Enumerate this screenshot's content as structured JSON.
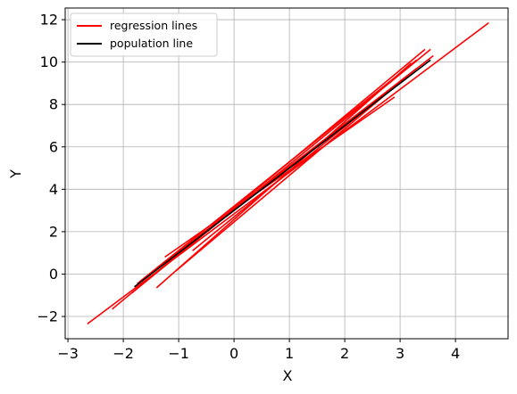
{
  "chart_data": {
    "type": "line",
    "title": "",
    "xlabel": "X",
    "ylabel": "Y",
    "xlim": [
      -3.05,
      4.95
    ],
    "ylim": [
      -3.05,
      12.55
    ],
    "xticks": [
      -3,
      -2,
      -1,
      0,
      1,
      2,
      3,
      4
    ],
    "yticks": [
      -2,
      0,
      2,
      4,
      6,
      8,
      10,
      12
    ],
    "xtick_labels": [
      "−3",
      "−2",
      "−1",
      "0",
      "1",
      "2",
      "3",
      "4"
    ],
    "ytick_labels": [
      "−2",
      "0",
      "2",
      "4",
      "6",
      "8",
      "10",
      "12"
    ],
    "grid": true,
    "legend": {
      "placement": "top-left",
      "entries": [
        {
          "label": "regression lines",
          "color": "#ff0000"
        },
        {
          "label": "population line",
          "color": "#000000"
        }
      ]
    },
    "series": [
      {
        "name": "regression lines",
        "color": "#ff0000",
        "segments": [
          {
            "x": [
              -2.65,
              4.6
            ],
            "y": [
              -2.35,
              11.85
            ]
          },
          {
            "x": [
              -2.2,
              3.45
            ],
            "y": [
              -1.65,
              10.6
            ]
          },
          {
            "x": [
              -1.85,
              3.55
            ],
            "y": [
              -0.9,
              10.6
            ]
          },
          {
            "x": [
              -1.75,
              3.6
            ],
            "y": [
              -0.45,
              10.3
            ]
          },
          {
            "x": [
              -1.7,
              3.3
            ],
            "y": [
              -0.35,
              10.1
            ]
          },
          {
            "x": [
              -1.4,
              3.2
            ],
            "y": [
              -0.65,
              9.95
            ]
          },
          {
            "x": [
              -1.25,
              2.9
            ],
            "y": [
              0.8,
              8.35
            ]
          },
          {
            "x": [
              -1.2,
              3.3
            ],
            "y": [
              0.6,
              9.7
            ]
          },
          {
            "x": [
              -1.05,
              3.25
            ],
            "y": [
              0.15,
              9.6
            ]
          },
          {
            "x": [
              -0.75,
              3.1
            ],
            "y": [
              1.1,
              9.3
            ]
          }
        ]
      },
      {
        "name": "population line",
        "color": "#000000",
        "segments": [
          {
            "x": [
              -1.8,
              3.55
            ],
            "y": [
              -0.6,
              10.1
            ]
          }
        ]
      }
    ]
  }
}
